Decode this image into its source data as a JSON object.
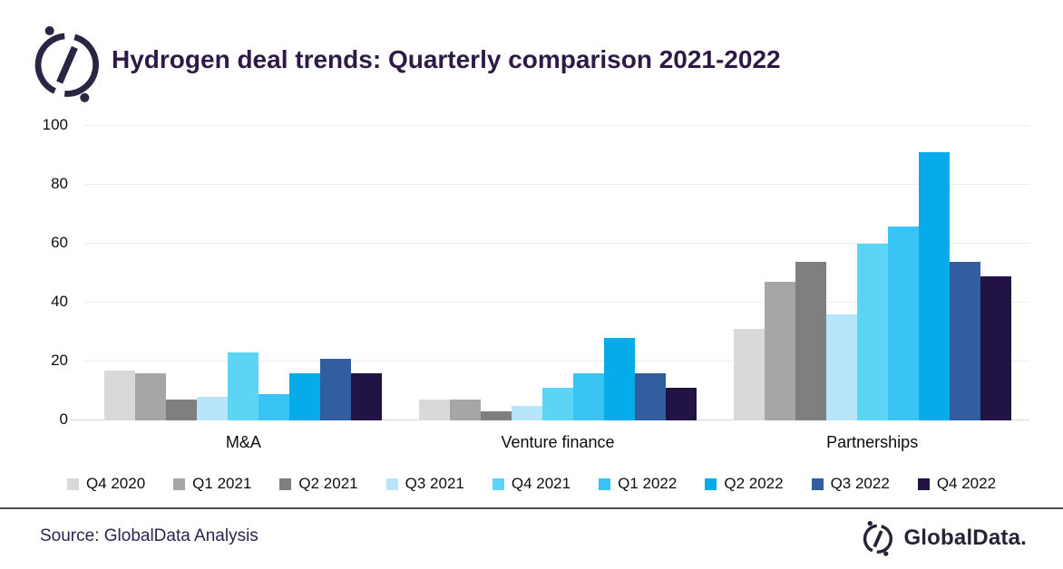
{
  "header": {
    "title": "Hydrogen deal trends: Quarterly comparison 2021-2022",
    "logo_icon": "globaldata-compass-icon"
  },
  "chart_data": {
    "type": "bar",
    "title": "Hydrogen deal trends: Quarterly comparison 2021-2022",
    "categories": [
      "M&A",
      "Venture finance",
      "Partnerships"
    ],
    "series": [
      {
        "name": "Q4 2020",
        "color": "#d9d9d9",
        "values": [
          17,
          7,
          31
        ]
      },
      {
        "name": "Q1 2021",
        "color": "#a6a6a6",
        "values": [
          16,
          7,
          47
        ]
      },
      {
        "name": "Q2 2021",
        "color": "#7f7f7f",
        "values": [
          7,
          3,
          54
        ]
      },
      {
        "name": "Q3 2021",
        "color": "#b7e6fc",
        "values": [
          8,
          5,
          36
        ]
      },
      {
        "name": "Q4 2021",
        "color": "#5cd5f5",
        "values": [
          23,
          11,
          60
        ]
      },
      {
        "name": "Q1 2022",
        "color": "#38c4f4",
        "values": [
          9,
          16,
          66
        ]
      },
      {
        "name": "Q2 2022",
        "color": "#06abea",
        "values": [
          16,
          28,
          91
        ]
      },
      {
        "name": "Q3 2022",
        "color": "#325ea0",
        "values": [
          21,
          16,
          54
        ]
      },
      {
        "name": "Q4 2022",
        "color": "#211344",
        "values": [
          16,
          11,
          49
        ]
      }
    ],
    "xlabel": "",
    "ylabel": "",
    "ylim": [
      0,
      100
    ],
    "yticks": [
      0,
      20,
      40,
      60,
      80,
      100
    ],
    "grid": true,
    "legend_position": "bottom"
  },
  "footer": {
    "source": "Source: GlobalData Analysis",
    "brand": "GlobalData.",
    "brand_icon": "globaldata-compass-icon"
  }
}
